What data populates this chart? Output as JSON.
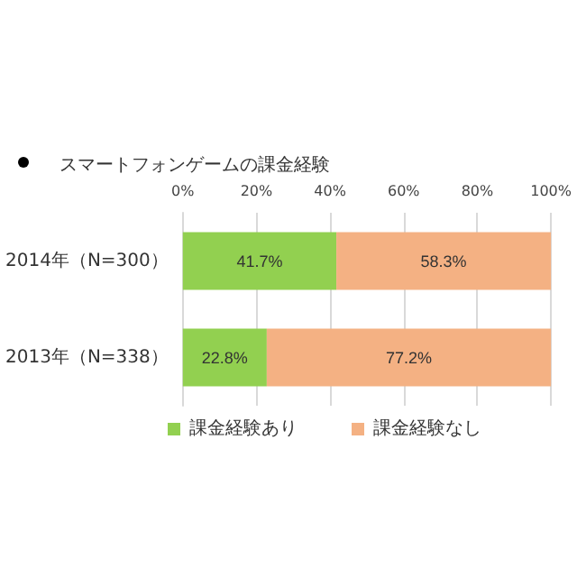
{
  "chart_data": {
    "type": "bar",
    "orientation": "horizontal",
    "stacked": true,
    "title": "スマートフォンゲームの課金経験",
    "categories": [
      "2014年（N=300）",
      "2013年（N=338）"
    ],
    "series": [
      {
        "name": "課金経験あり",
        "color": "#92d050",
        "values": [
          41.7,
          22.8
        ],
        "value_labels": [
          "41.7%",
          "22.8%"
        ]
      },
      {
        "name": "課金経験なし",
        "color": "#f4b183",
        "values": [
          58.3,
          77.2
        ],
        "value_labels": [
          "58.3%",
          "77.2%"
        ]
      }
    ],
    "xlim": [
      0,
      100
    ],
    "xticks": [
      {
        "value": 0,
        "label": "0%"
      },
      {
        "value": 20,
        "label": "20%"
      },
      {
        "value": 40,
        "label": "40%"
      },
      {
        "value": 60,
        "label": "60%"
      },
      {
        "value": 80,
        "label": "80%"
      },
      {
        "value": 100,
        "label": "100%"
      }
    ],
    "grid": "x",
    "legend": "bottom left"
  }
}
